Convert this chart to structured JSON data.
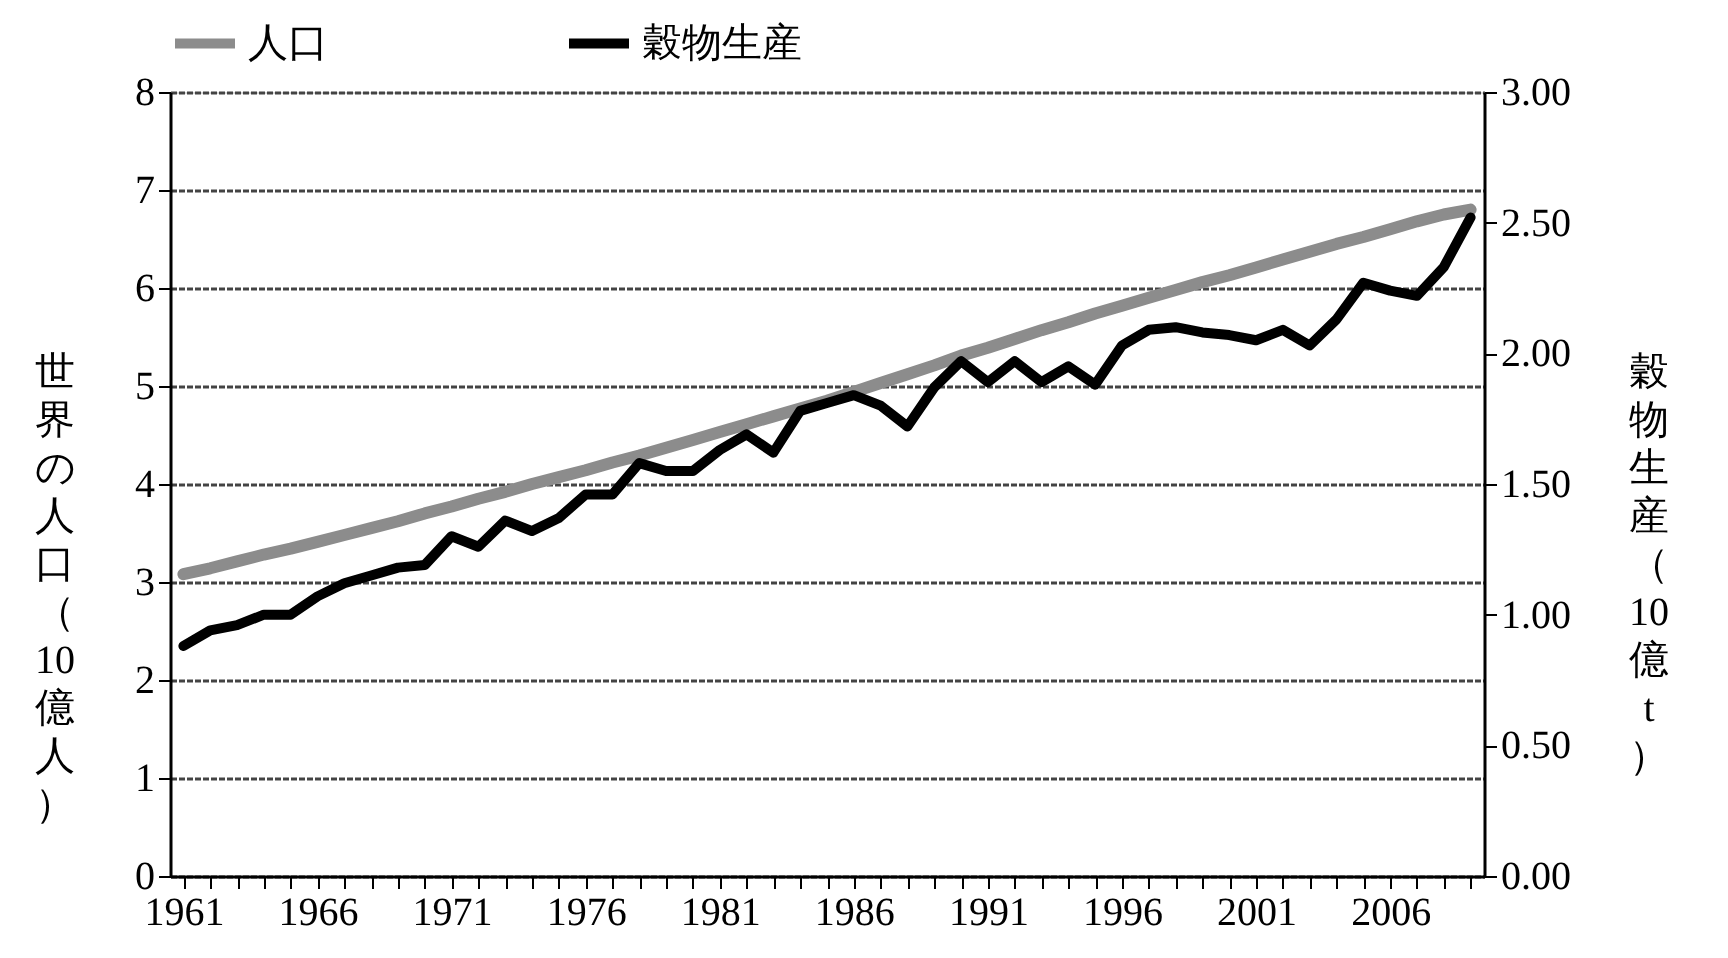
{
  "chart_data": {
    "type": "line",
    "categories": [
      "1961",
      null,
      null,
      null,
      null,
      "1966",
      null,
      null,
      null,
      null,
      "1971",
      null,
      null,
      null,
      null,
      "1976",
      null,
      null,
      null,
      null,
      "1981",
      null,
      null,
      null,
      null,
      "1986",
      null,
      null,
      null,
      null,
      "1991",
      null,
      null,
      null,
      null,
      "1996",
      null,
      null,
      null,
      null,
      "2001",
      null,
      null,
      null,
      null,
      "2006",
      null,
      null,
      null
    ],
    "ylabel": "世界の人口（10億人）",
    "y2label": "穀物生産（10億t）",
    "series": [
      {
        "name": "人口",
        "color": "#8c8c8c",
        "values": [
          3.08,
          3.14,
          3.21,
          3.28,
          3.34,
          3.41,
          3.48,
          3.55,
          3.62,
          3.7,
          3.77,
          3.85,
          3.92,
          4.0,
          4.07,
          4.14,
          4.22,
          4.29,
          4.37,
          4.45,
          4.53,
          4.61,
          4.69,
          4.77,
          4.85,
          4.94,
          5.03,
          5.12,
          5.21,
          5.31,
          5.39,
          5.48,
          5.57,
          5.65,
          5.74,
          5.82,
          5.9,
          5.98,
          6.06,
          6.13,
          6.21,
          6.29,
          6.37,
          6.45,
          6.52,
          6.6,
          6.68,
          6.75,
          6.8
        ]
      },
      {
        "name": "穀物生産",
        "color": "#000000",
        "axis": "y2",
        "values": [
          0.88,
          0.94,
          0.96,
          1.0,
          1.0,
          1.07,
          1.12,
          1.15,
          1.18,
          1.19,
          1.3,
          1.26,
          1.36,
          1.32,
          1.37,
          1.46,
          1.46,
          1.58,
          1.55,
          1.55,
          1.63,
          1.69,
          1.62,
          1.78,
          1.81,
          1.84,
          1.8,
          1.72,
          1.87,
          1.97,
          1.89,
          1.97,
          1.89,
          1.95,
          1.88,
          2.03,
          2.09,
          2.1,
          2.08,
          2.07,
          2.05,
          2.09,
          2.03,
          2.13,
          2.27,
          2.24,
          2.22,
          2.33,
          2.52
        ]
      }
    ],
    "ylim": [
      0,
      8
    ],
    "yticks": [
      0,
      1,
      2,
      3,
      4,
      5,
      6,
      7,
      8
    ],
    "y2lim": [
      0,
      3
    ],
    "y2ticks": [
      {
        "value": 0,
        "label": "0.00"
      },
      {
        "value": 0.5,
        "label": "0.50"
      },
      {
        "value": 1,
        "label": "1.00"
      },
      {
        "value": 1.5,
        "label": "1.50"
      },
      {
        "value": 2,
        "label": "2.00"
      },
      {
        "value": 2.5,
        "label": "2.50"
      },
      {
        "value": 3,
        "label": "3.00"
      }
    ],
    "grid": "y",
    "legend": "top",
    "marker": "none",
    "line_style": "solid"
  }
}
